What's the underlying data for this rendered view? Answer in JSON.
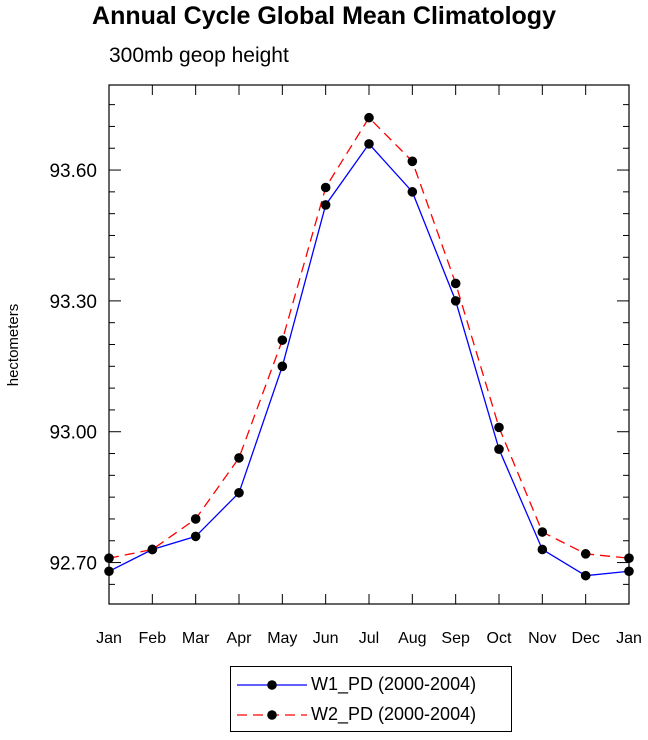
{
  "chart_data": {
    "type": "line",
    "title": "Annual Cycle Global Mean Climatology",
    "subtitle": "300mb geop height",
    "xlabel": "",
    "ylabel": "hectometers",
    "categories": [
      "Jan",
      "Feb",
      "Mar",
      "Apr",
      "May",
      "Jun",
      "Jul",
      "Aug",
      "Sep",
      "Oct",
      "Nov",
      "Dec",
      "Jan"
    ],
    "yticks": [
      "92.70",
      "93.00",
      "93.30",
      "93.60"
    ],
    "ylim": [
      92.605,
      93.795
    ],
    "series": [
      {
        "name": "W1_PD (2000-2004)",
        "color": "#0000ff",
        "dash": "solid",
        "values": [
          92.68,
          92.73,
          92.76,
          92.86,
          93.15,
          93.52,
          93.66,
          93.55,
          93.3,
          92.96,
          92.73,
          92.67,
          92.68
        ]
      },
      {
        "name": "W2_PD (2000-2004)",
        "color": "#ff0000",
        "dash": "dashed",
        "values": [
          92.71,
          92.73,
          92.8,
          92.94,
          93.21,
          93.56,
          93.72,
          93.62,
          93.34,
          93.01,
          92.77,
          92.72,
          92.71
        ]
      }
    ],
    "legend_position": "bottom-center"
  }
}
